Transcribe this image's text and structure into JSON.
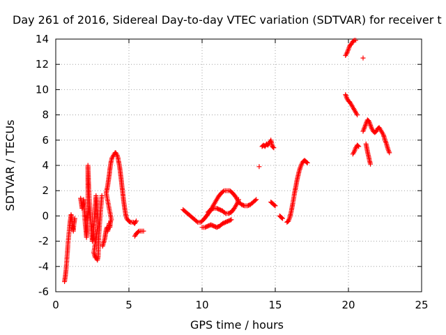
{
  "chart_data": {
    "type": "scatter",
    "title": "Day 261 of 2016, Sidereal Day-to-day VTEC variation (SDTVAR) for receiver t",
    "xlabel": "GPS time / hours",
    "ylabel": "SDTVAR / TECUs",
    "xlim": [
      0,
      25
    ],
    "ylim": [
      -6,
      14
    ],
    "xticks": [
      "0",
      "5",
      "10",
      "15",
      "20",
      "25"
    ],
    "yticks": [
      "-6",
      "-4",
      "-2",
      "0",
      "2",
      "4",
      "6",
      "8",
      "10",
      "12",
      "14"
    ],
    "xtick_values": [
      0,
      5,
      10,
      15,
      20,
      25
    ],
    "ytick_values": [
      -6,
      -4,
      -2,
      0,
      2,
      4,
      6,
      8,
      10,
      12,
      14
    ],
    "grid": true,
    "marker": "+",
    "color": "#ff0000",
    "segments": [
      [
        [
          0.6,
          -5.2
        ],
        [
          0.65,
          -4.8
        ],
        [
          0.7,
          -4.3
        ],
        [
          0.75,
          -3.6
        ],
        [
          0.8,
          -2.8
        ],
        [
          0.85,
          -2.0
        ],
        [
          0.9,
          -1.4
        ],
        [
          0.95,
          -0.8
        ],
        [
          1.0,
          -0.3
        ],
        [
          1.05,
          0.1
        ],
        [
          1.1,
          -0.3
        ],
        [
          1.15,
          -0.8
        ],
        [
          1.2,
          -1.2
        ],
        [
          1.25,
          -0.6
        ],
        [
          1.3,
          -0.2
        ]
      ],
      [
        [
          1.7,
          1.4
        ],
        [
          1.75,
          1.0
        ],
        [
          1.8,
          0.6
        ],
        [
          1.85,
          0.9
        ],
        [
          1.9,
          1.3
        ],
        [
          1.95,
          0.4
        ],
        [
          2.0,
          -0.4
        ],
        [
          2.05,
          -1.1
        ],
        [
          2.1,
          -1.7
        ],
        [
          2.15,
          -0.6
        ],
        [
          2.2,
          0.6
        ],
        [
          2.2,
          1.8
        ],
        [
          2.2,
          2.6
        ],
        [
          2.2,
          3.3
        ],
        [
          2.2,
          4.0
        ],
        [
          2.25,
          2.4
        ],
        [
          2.3,
          1.2
        ],
        [
          2.35,
          0.3
        ],
        [
          2.4,
          -0.6
        ],
        [
          2.45,
          -1.4
        ],
        [
          2.5,
          -2.0
        ],
        [
          2.55,
          -1.7
        ],
        [
          2.6,
          -0.9
        ],
        [
          2.65,
          -0.1
        ],
        [
          2.7,
          0.8
        ],
        [
          2.75,
          1.6
        ],
        [
          2.8,
          1.0
        ],
        [
          2.85,
          0.2
        ],
        [
          2.9,
          -0.7
        ],
        [
          2.6,
          -2.9
        ],
        [
          2.65,
          -3.1
        ],
        [
          2.7,
          -3.3
        ],
        [
          2.75,
          -3.2
        ],
        [
          2.8,
          -3.4
        ],
        [
          2.85,
          -3.5
        ],
        [
          2.9,
          -3.2
        ],
        [
          2.95,
          -1.4
        ],
        [
          3.0,
          -0.6
        ],
        [
          3.05,
          0.2
        ],
        [
          3.1,
          0.9
        ],
        [
          3.15,
          1.6
        ]
      ],
      [
        [
          3.2,
          -2.4
        ],
        [
          3.25,
          -2.2
        ],
        [
          3.3,
          -2.0
        ],
        [
          3.35,
          -1.8
        ],
        [
          3.4,
          -1.4
        ],
        [
          3.45,
          -1.1
        ],
        [
          3.5,
          -0.9
        ],
        [
          3.55,
          -1.2
        ],
        [
          3.6,
          -1.0
        ],
        [
          3.65,
          -0.6
        ],
        [
          3.7,
          -0.9
        ],
        [
          3.75,
          -0.4
        ],
        [
          3.8,
          -0.3
        ],
        [
          3.45,
          1.8
        ],
        [
          3.5,
          2.1
        ],
        [
          3.55,
          2.4
        ],
        [
          3.6,
          2.8
        ],
        [
          3.65,
          3.2
        ],
        [
          3.7,
          3.7
        ],
        [
          3.75,
          4.1
        ],
        [
          3.8,
          4.4
        ],
        [
          3.85,
          4.6
        ],
        [
          3.9,
          4.7
        ],
        [
          3.95,
          4.8
        ],
        [
          4.0,
          4.9
        ],
        [
          4.05,
          5.0
        ],
        [
          4.1,
          5.0
        ],
        [
          4.15,
          4.9
        ],
        [
          4.2,
          4.8
        ],
        [
          4.25,
          4.6
        ],
        [
          4.3,
          4.3
        ],
        [
          4.35,
          4.0
        ],
        [
          4.4,
          3.6
        ],
        [
          4.45,
          3.1
        ],
        [
          4.5,
          2.6
        ],
        [
          4.55,
          2.1
        ],
        [
          4.6,
          1.6
        ],
        [
          4.65,
          1.1
        ],
        [
          4.7,
          0.7
        ],
        [
          4.75,
          0.3
        ],
        [
          4.8,
          0.0
        ],
        [
          4.85,
          -0.2
        ],
        [
          4.9,
          -0.3
        ],
        [
          5.0,
          -0.4
        ],
        [
          5.1,
          -0.5
        ],
        [
          5.2,
          -0.5
        ],
        [
          5.3,
          -0.5
        ],
        [
          5.4,
          -0.6
        ],
        [
          5.5,
          -0.4
        ]
      ],
      [
        [
          5.4,
          -1.6
        ],
        [
          5.5,
          -1.4
        ],
        [
          5.6,
          -1.3
        ],
        [
          5.7,
          -1.2
        ],
        [
          5.8,
          -1.2
        ],
        [
          5.9,
          -1.2
        ],
        [
          6.0,
          -1.2
        ]
      ],
      [
        [
          8.7,
          0.5
        ],
        [
          8.9,
          0.3
        ],
        [
          9.1,
          0.1
        ],
        [
          9.3,
          -0.1
        ],
        [
          9.5,
          -0.3
        ],
        [
          9.7,
          -0.5
        ],
        [
          9.9,
          -0.5
        ],
        [
          10.1,
          -0.3
        ],
        [
          10.3,
          0.0
        ],
        [
          10.5,
          0.3
        ],
        [
          10.7,
          0.7
        ],
        [
          10.9,
          1.1
        ],
        [
          11.1,
          1.5
        ],
        [
          11.3,
          1.8
        ],
        [
          11.5,
          2.0
        ],
        [
          11.7,
          2.0
        ],
        [
          11.9,
          2.0
        ],
        [
          12.1,
          1.8
        ],
        [
          12.3,
          1.5
        ],
        [
          12.5,
          1.1
        ],
        [
          12.7,
          0.9
        ],
        [
          12.9,
          0.8
        ],
        [
          13.1,
          0.8
        ],
        [
          13.3,
          0.9
        ],
        [
          13.5,
          1.1
        ],
        [
          13.7,
          1.3
        ]
      ],
      [
        [
          10.0,
          -0.9
        ],
        [
          10.2,
          -0.9
        ],
        [
          10.4,
          -0.8
        ],
        [
          10.6,
          -0.7
        ],
        [
          10.8,
          -0.8
        ],
        [
          11.0,
          -0.9
        ],
        [
          11.2,
          -0.8
        ],
        [
          11.4,
          -0.6
        ],
        [
          11.6,
          -0.5
        ],
        [
          11.8,
          -0.4
        ],
        [
          12.0,
          -0.3
        ]
      ],
      [
        [
          10.4,
          0.3
        ],
        [
          10.6,
          0.5
        ],
        [
          10.8,
          0.6
        ],
        [
          11.0,
          0.6
        ],
        [
          11.2,
          0.5
        ],
        [
          11.4,
          0.4
        ],
        [
          11.6,
          0.2
        ],
        [
          11.8,
          0.2
        ],
        [
          12.0,
          0.3
        ],
        [
          12.2,
          0.6
        ],
        [
          12.4,
          1.0
        ],
        [
          12.5,
          1.3
        ]
      ],
      [
        [
          13.9,
          3.9
        ]
      ],
      [
        [
          14.1,
          5.5
        ],
        [
          14.2,
          5.6
        ],
        [
          14.3,
          5.5
        ],
        [
          14.4,
          5.7
        ],
        [
          14.5,
          5.6
        ],
        [
          14.6,
          5.8
        ],
        [
          14.7,
          6.0
        ],
        [
          14.8,
          5.5
        ],
        [
          14.9,
          5.4
        ]
      ],
      [
        [
          14.7,
          1.1
        ],
        [
          14.8,
          1.0
        ],
        [
          14.9,
          0.9
        ],
        [
          15.0,
          0.8
        ]
      ],
      [
        [
          15.3,
          0.0
        ],
        [
          15.4,
          -0.1
        ],
        [
          15.5,
          -0.2
        ]
      ],
      [
        [
          15.8,
          -0.5
        ],
        [
          15.9,
          -0.4
        ],
        [
          16.0,
          -0.1
        ],
        [
          16.1,
          0.4
        ],
        [
          16.2,
          1.0
        ],
        [
          16.3,
          1.7
        ],
        [
          16.4,
          2.3
        ],
        [
          16.5,
          2.9
        ],
        [
          16.6,
          3.4
        ],
        [
          16.7,
          3.8
        ],
        [
          16.8,
          4.1
        ],
        [
          16.9,
          4.3
        ],
        [
          17.0,
          4.4
        ],
        [
          17.1,
          4.3
        ],
        [
          17.2,
          4.2
        ]
      ],
      [
        [
          19.8,
          12.7
        ],
        [
          19.9,
          12.9
        ],
        [
          20.0,
          13.2
        ],
        [
          20.1,
          13.5
        ],
        [
          20.2,
          13.6
        ],
        [
          20.3,
          13.8
        ],
        [
          20.4,
          13.9
        ],
        [
          20.5,
          13.9
        ]
      ],
      [
        [
          21.0,
          12.5
        ]
      ],
      [
        [
          19.8,
          9.6
        ],
        [
          19.9,
          9.3
        ],
        [
          20.0,
          9.1
        ],
        [
          20.1,
          9.0
        ],
        [
          20.2,
          8.8
        ],
        [
          20.3,
          8.6
        ],
        [
          20.4,
          8.4
        ],
        [
          20.5,
          8.2
        ],
        [
          20.6,
          8.0
        ]
      ],
      [
        [
          20.3,
          4.9
        ],
        [
          20.4,
          5.1
        ],
        [
          20.5,
          5.4
        ],
        [
          20.6,
          5.6
        ],
        [
          20.7,
          5.5
        ]
      ],
      [
        [
          21.0,
          6.7
        ],
        [
          21.1,
          7.0
        ],
        [
          21.2,
          7.3
        ],
        [
          21.3,
          7.6
        ],
        [
          21.4,
          7.5
        ],
        [
          21.5,
          7.2
        ],
        [
          21.6,
          6.9
        ],
        [
          21.7,
          6.7
        ],
        [
          21.8,
          6.6
        ],
        [
          21.9,
          6.7
        ],
        [
          22.0,
          6.9
        ],
        [
          22.1,
          7.0
        ],
        [
          22.2,
          6.8
        ],
        [
          22.3,
          6.6
        ],
        [
          22.4,
          6.4
        ],
        [
          22.5,
          6.0
        ],
        [
          22.6,
          5.7
        ],
        [
          22.7,
          5.3
        ],
        [
          22.8,
          5.0
        ]
      ],
      [
        [
          21.2,
          5.7
        ],
        [
          21.3,
          5.1
        ],
        [
          21.4,
          4.6
        ],
        [
          21.5,
          4.1
        ]
      ]
    ]
  }
}
